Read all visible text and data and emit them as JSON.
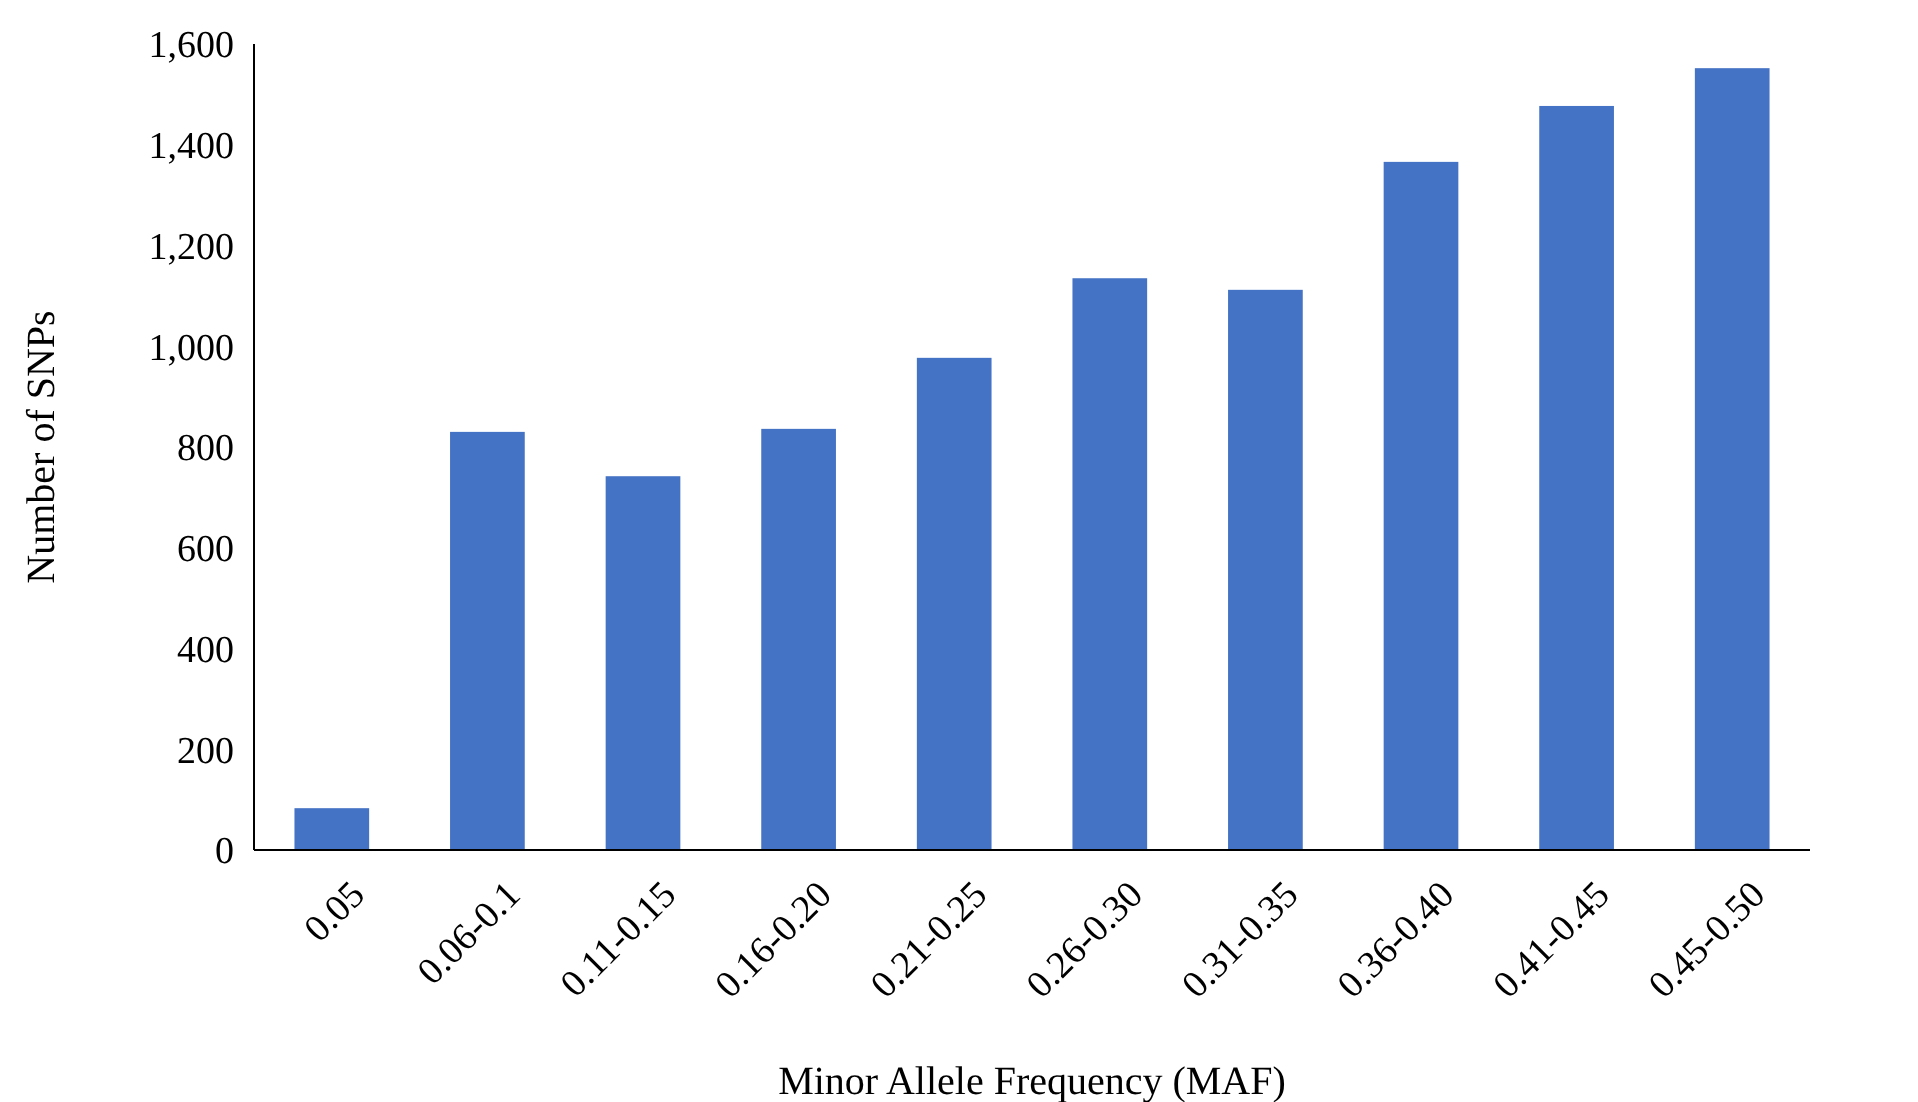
{
  "chart_data": {
    "type": "bar",
    "xlabel": "Minor Allele Frequency (MAF)",
    "ylabel": "Number of SNPs",
    "categories": [
      "0.05",
      "0.06-0.1",
      "0.11-0.15",
      "0.16-0.20",
      "0.21-0.25",
      "0.26-0.30",
      "0.31-0.35",
      "0.36-0.40",
      "0.41-0.45",
      "0.45-0.50"
    ],
    "values": [
      83,
      830,
      742,
      836,
      977,
      1135,
      1112,
      1366,
      1477,
      1552
    ],
    "color": "#4472c4",
    "ylim": [
      0,
      1600
    ],
    "yticks": [
      {
        "value": 0,
        "label": "0"
      },
      {
        "value": 200,
        "label": "200"
      },
      {
        "value": 400,
        "label": "400"
      },
      {
        "value": 600,
        "label": "600"
      },
      {
        "value": 800,
        "label": "800"
      },
      {
        "value": 1000,
        "label": "1,000"
      },
      {
        "value": 1200,
        "label": "1,200"
      },
      {
        "value": 1400,
        "label": "1,400"
      },
      {
        "value": 1600,
        "label": "1,600"
      }
    ],
    "grid": false
  }
}
